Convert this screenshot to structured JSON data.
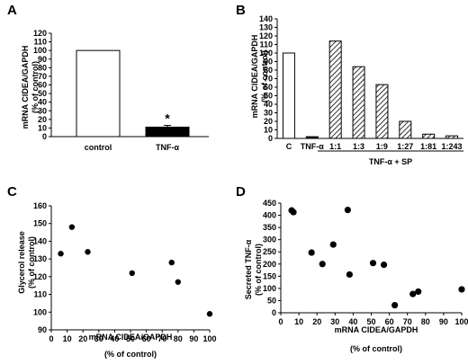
{
  "chart_data": [
    {
      "panel": "A",
      "type": "bar",
      "ylabel": [
        "mRNA CIDEA/GAPDH",
        "(% of control)"
      ],
      "ylim": [
        0,
        120
      ],
      "yticks": [
        0,
        10,
        20,
        30,
        40,
        50,
        60,
        70,
        80,
        90,
        100,
        110,
        120
      ],
      "categories": [
        "control",
        "TNF-α"
      ],
      "values": [
        100,
        11
      ],
      "errors": [
        0,
        2
      ],
      "fills": [
        "#ffffff",
        "#000000"
      ],
      "annotation": "*"
    },
    {
      "panel": "B",
      "type": "bar",
      "ylabel": [
        "mRNA CIDEA/GAPDH",
        "(% of control)"
      ],
      "ylim": [
        0,
        140
      ],
      "yticks": [
        0,
        10,
        20,
        30,
        40,
        50,
        60,
        70,
        80,
        90,
        100,
        110,
        120,
        130,
        140
      ],
      "categories": [
        "C",
        "TNF-α",
        "1:1",
        "1:3",
        "1:9",
        "1:27",
        "1:81",
        "1:243"
      ],
      "values": [
        100,
        2,
        114,
        84,
        63,
        20,
        5,
        3
      ],
      "fills": [
        "#ffffff",
        "#000000",
        "hatch",
        "hatch",
        "hatch",
        "hatch",
        "hatch",
        "hatch"
      ],
      "group_label": "TNF-α + SP"
    },
    {
      "panel": "C",
      "type": "scatter",
      "ylabel": [
        "Glycerol release",
        "(% of control)"
      ],
      "xlabel": [
        "mRNA CIDEA/GAPDH",
        "(% of control)"
      ],
      "xlim": [
        0,
        100
      ],
      "ylim": [
        90,
        160
      ],
      "xticks": [
        0,
        10,
        20,
        30,
        40,
        50,
        60,
        70,
        80,
        90,
        100
      ],
      "yticks": [
        90,
        100,
        110,
        120,
        130,
        140,
        150,
        160
      ],
      "points": [
        [
          6,
          133
        ],
        [
          13,
          148
        ],
        [
          23,
          134
        ],
        [
          51,
          122
        ],
        [
          76,
          128
        ],
        [
          80,
          117
        ],
        [
          100,
          99
        ]
      ]
    },
    {
      "panel": "D",
      "type": "scatter",
      "ylabel": [
        "Secreted TNF-α",
        "(% of control)"
      ],
      "xlabel": [
        "mRNA CIDEA/GAPDH",
        "(% of control)"
      ],
      "xlim": [
        0,
        100
      ],
      "ylim": [
        0,
        450
      ],
      "xticks": [
        0,
        10,
        20,
        30,
        40,
        50,
        60,
        70,
        80,
        90,
        100
      ],
      "yticks": [
        0,
        50,
        100,
        150,
        200,
        250,
        300,
        350,
        400,
        450
      ],
      "points": [
        [
          6,
          420
        ],
        [
          7,
          413
        ],
        [
          17,
          247
        ],
        [
          23,
          200
        ],
        [
          29,
          280
        ],
        [
          37,
          422
        ],
        [
          38,
          157
        ],
        [
          51,
          204
        ],
        [
          57,
          197
        ],
        [
          63,
          31
        ],
        [
          73,
          77
        ],
        [
          76,
          87
        ],
        [
          100,
          96
        ]
      ]
    }
  ]
}
